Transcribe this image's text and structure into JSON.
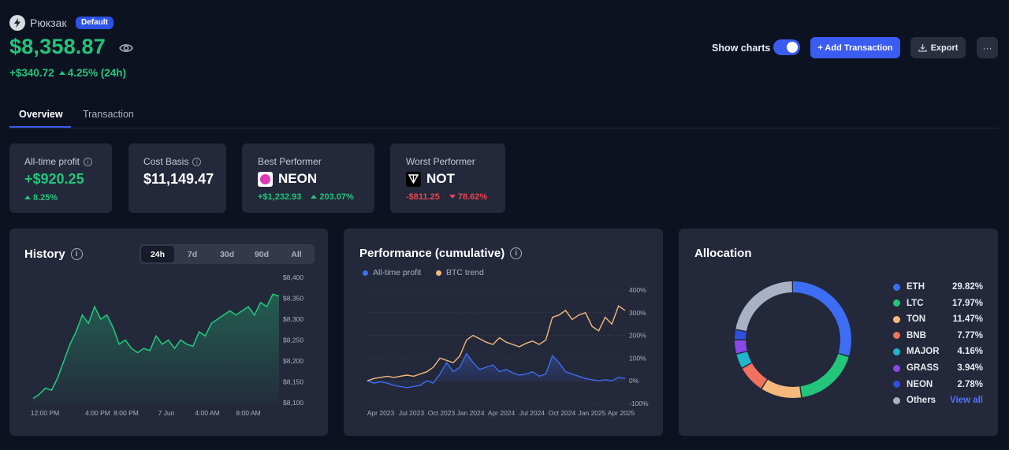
{
  "portfolio": {
    "name": "Рюкзак",
    "badge": "Default",
    "balance": "$8,358.87",
    "change_amount": "+$340.72",
    "change_pct": "4.25% (24h)"
  },
  "toolbar": {
    "show_charts_label": "Show charts",
    "show_charts_on": true,
    "add_label": "+ Add Transaction",
    "export_label": "Export",
    "more_label": "···"
  },
  "tabs": [
    {
      "label": "Overview",
      "active": true
    },
    {
      "label": "Transaction",
      "active": false
    }
  ],
  "stats": {
    "alltime": {
      "title": "All-time profit",
      "value": "+$920.25",
      "pct": "8.25%"
    },
    "cost_basis": {
      "title": "Cost Basis",
      "value": "$11,149.47"
    },
    "best": {
      "title": "Best Performer",
      "coin": "NEON",
      "amount": "+$1,232.93",
      "pct": "203.07%"
    },
    "worst": {
      "title": "Worst Performer",
      "coin": "NOT",
      "amount": "-$811.25",
      "pct": "78.62%"
    }
  },
  "history": {
    "title": "History",
    "ranges": [
      "24h",
      "7d",
      "30d",
      "90d",
      "All"
    ],
    "active_range": "24h"
  },
  "performance": {
    "title": "Performance (cumulative)",
    "legend": [
      "All-time profit",
      "BTC trend"
    ]
  },
  "allocation": {
    "title": "Allocation",
    "items": [
      {
        "name": "ETH",
        "pct": "29.82%",
        "value": 29.82,
        "color": "#3d6df2"
      },
      {
        "name": "LTC",
        "pct": "17.97%",
        "value": 17.97,
        "color": "#22c57a"
      },
      {
        "name": "TON",
        "pct": "11.47%",
        "value": 11.47,
        "color": "#f4b97b"
      },
      {
        "name": "BNB",
        "pct": "7.77%",
        "value": 7.77,
        "color": "#f0725c"
      },
      {
        "name": "MAJOR",
        "pct": "4.16%",
        "value": 4.16,
        "color": "#1fb5cc"
      },
      {
        "name": "GRASS",
        "pct": "3.94%",
        "value": 3.94,
        "color": "#8b48e8"
      },
      {
        "name": "NEON",
        "pct": "2.78%",
        "value": 2.78,
        "color": "#2f4fe0"
      },
      {
        "name": "Others",
        "pct": "View all",
        "value": 22.09,
        "color": "#a9b2c4"
      }
    ]
  },
  "chart_data": [
    {
      "type": "area",
      "title": "History",
      "x_ticks": [
        "12:00 PM",
        "4:00 PM",
        "8:00 PM",
        "7 Jun",
        "4:00 AM",
        "8:00 AM"
      ],
      "y_ticks": [
        "$8,100",
        "$8,150",
        "$8,200",
        "$8,250",
        "$8,300",
        "$8,350",
        "$8,400"
      ],
      "ylim": [
        8100,
        8400
      ],
      "series": [
        {
          "values": [
            8110,
            8120,
            8135,
            8130,
            8160,
            8200,
            8240,
            8270,
            8310,
            8290,
            8330,
            8300,
            8310,
            8280,
            8240,
            8250,
            8230,
            8220,
            8230,
            8225,
            8260,
            8240,
            8250,
            8230,
            8250,
            8240,
            8235,
            8270,
            8260,
            8290,
            8300,
            8310,
            8320,
            8310,
            8320,
            8330,
            8310,
            8340,
            8330,
            8360,
            8355
          ]
        }
      ],
      "color": "#22c57a"
    },
    {
      "type": "line",
      "title": "Performance (cumulative)",
      "x_ticks": [
        "Apr 2023",
        "Jul 2023",
        "Oct 2023",
        "Jan 2024",
        "Apr 2024",
        "Jul 2024",
        "Oct 2024",
        "Jan 2025",
        "Apr 2025"
      ],
      "y_ticks": [
        "-100%",
        "0%",
        "100%",
        "200%",
        "300%",
        "400%"
      ],
      "ylim": [
        -100,
        400
      ],
      "series": [
        {
          "name": "All-time profit",
          "color": "#3d6df2",
          "values": [
            0,
            -10,
            -5,
            -10,
            -20,
            -25,
            -30,
            -25,
            -20,
            0,
            -10,
            30,
            80,
            40,
            60,
            120,
            80,
            50,
            60,
            70,
            40,
            50,
            35,
            25,
            30,
            40,
            20,
            30,
            110,
            80,
            40,
            30,
            20,
            10,
            5,
            0,
            5,
            0,
            15,
            10
          ]
        },
        {
          "name": "BTC trend",
          "color": "#f4b97b",
          "values": [
            0,
            10,
            15,
            20,
            15,
            20,
            25,
            20,
            30,
            40,
            60,
            100,
            90,
            80,
            110,
            180,
            200,
            185,
            170,
            160,
            190,
            170,
            160,
            150,
            165,
            175,
            160,
            180,
            280,
            290,
            310,
            270,
            290,
            300,
            240,
            220,
            280,
            250,
            330,
            310
          ]
        }
      ]
    },
    {
      "type": "pie",
      "title": "Allocation",
      "categories": [
        "ETH",
        "LTC",
        "TON",
        "BNB",
        "MAJOR",
        "GRASS",
        "NEON",
        "Others"
      ],
      "values": [
        29.82,
        17.97,
        11.47,
        7.77,
        4.16,
        3.94,
        2.78,
        22.09
      ]
    }
  ]
}
